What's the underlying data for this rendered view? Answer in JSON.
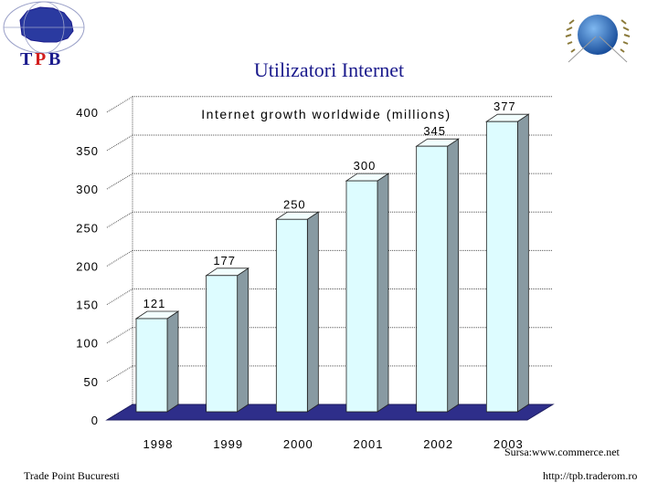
{
  "slide": {
    "title": "Utilizatori Internet",
    "logo_text": "TPB",
    "source": "Sursa:www.commerce.net",
    "footer_left": "Trade Point Bucuresti",
    "footer_right": "http://tpb.traderom.ro"
  },
  "colors": {
    "title": "#1a1a8c",
    "bar_front": "#ddfcff",
    "bar_side": "#889aa2",
    "bar_top": "#f2fefe",
    "floor": "#2e2e8a",
    "logo_t": "#1a1a8c",
    "logo_p": "#d21c1c",
    "logo_b": "#1a1a8c"
  },
  "chart_data": {
    "type": "bar",
    "title": "Internet growth worldwide (millions)",
    "categories": [
      "1998",
      "1999",
      "2000",
      "2001",
      "2002",
      "2003"
    ],
    "values": [
      121,
      177,
      250,
      300,
      345,
      377
    ],
    "data_labels": [
      "121",
      "177",
      "250",
      "300",
      "345",
      "377"
    ],
    "y_ticks": [
      "0",
      "50",
      "100",
      "150",
      "200",
      "250",
      "300",
      "350",
      "400"
    ],
    "ylim": [
      0,
      400
    ],
    "grid": true,
    "legend": "none",
    "style": "3d"
  }
}
